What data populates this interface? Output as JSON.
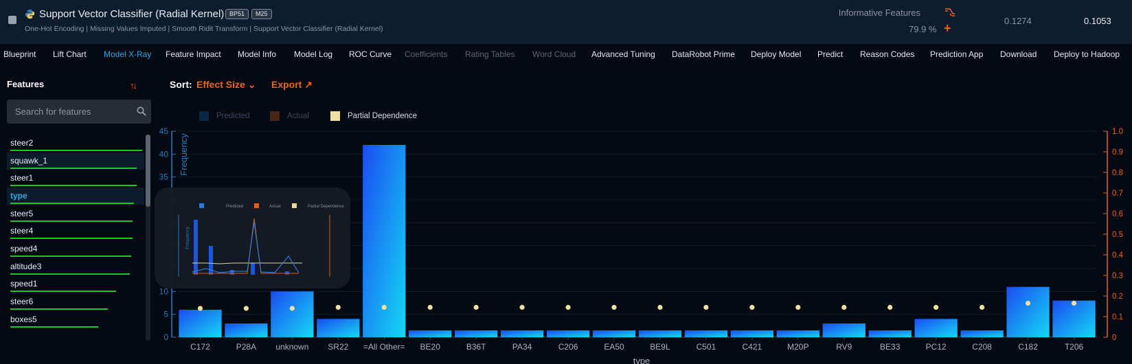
{
  "header": {
    "title": "Support Vector Classifier (Radial Kernel)",
    "badges": [
      "BP51",
      "M25"
    ],
    "subtitle": "One-Hot Encoding | Missing Values Imputed | Smooth Ridit Transform | Support Vector Classifier (Radial Kernel)",
    "feature_list_label": "Informative Features",
    "sample_pct": "79.9 %",
    "metric_validation": "0.1274",
    "metric_cv": "0.1053"
  },
  "tabs": [
    {
      "label": "Blueprint",
      "state": "normal"
    },
    {
      "label": "Lift Chart",
      "state": "normal"
    },
    {
      "label": "Model X-Ray",
      "state": "active"
    },
    {
      "label": "Feature Impact",
      "state": "normal"
    },
    {
      "label": "Model Info",
      "state": "normal"
    },
    {
      "label": "Model Log",
      "state": "normal"
    },
    {
      "label": "ROC Curve",
      "state": "normal"
    },
    {
      "label": "Coefficients",
      "state": "disabled"
    },
    {
      "label": "Rating Tables",
      "state": "disabled"
    },
    {
      "label": "Word Cloud",
      "state": "disabled"
    },
    {
      "label": "Advanced Tuning",
      "state": "normal"
    },
    {
      "label": "DataRobot Prime",
      "state": "normal"
    },
    {
      "label": "Deploy Model",
      "state": "normal"
    },
    {
      "label": "Predict",
      "state": "normal"
    },
    {
      "label": "Reason Codes",
      "state": "normal"
    },
    {
      "label": "Prediction App",
      "state": "normal"
    },
    {
      "label": "Download",
      "state": "normal"
    },
    {
      "label": "Deploy to Hadoop",
      "state": "normal"
    }
  ],
  "sidebar": {
    "title": "Features",
    "search_placeholder": "Search for features",
    "features": [
      {
        "name": "steer2",
        "impact": 0.96,
        "highlight": false,
        "selected": false
      },
      {
        "name": "squawk_1",
        "impact": 0.92,
        "highlight": true,
        "selected": false
      },
      {
        "name": "steer1",
        "impact": 0.92,
        "highlight": false,
        "selected": false
      },
      {
        "name": "type",
        "impact": 0.9,
        "highlight": true,
        "selected": true
      },
      {
        "name": "steer5",
        "impact": 0.89,
        "highlight": false,
        "selected": false
      },
      {
        "name": "steer4",
        "impact": 0.89,
        "highlight": false,
        "selected": false
      },
      {
        "name": "speed4",
        "impact": 0.88,
        "highlight": false,
        "selected": false
      },
      {
        "name": "altitude3",
        "impact": 0.87,
        "highlight": false,
        "selected": false
      },
      {
        "name": "speed1",
        "impact": 0.77,
        "highlight": false,
        "selected": false
      },
      {
        "name": "steer6",
        "impact": 0.71,
        "highlight": false,
        "selected": false
      },
      {
        "name": "boxes5",
        "impact": 0.64,
        "highlight": false,
        "selected": false
      }
    ]
  },
  "toolbar": {
    "sort_label": "Sort:",
    "sort_value": "Effect Size",
    "export_label": "Export"
  },
  "legend": [
    {
      "label": "Predicted",
      "color": "#0b2640",
      "text_color": "#3b4a5c"
    },
    {
      "label": "Actual",
      "color": "#4a2414",
      "text_color": "#3b4a5c"
    },
    {
      "label": "Partial Dependence",
      "color": "#efe0a0",
      "text_color": "#d8dee6"
    }
  ],
  "chart_data": {
    "type": "bar",
    "xlabel": "type",
    "ylabel": "Frequency",
    "ylim": [
      0,
      45
    ],
    "y_ticks": [
      0,
      5,
      10,
      15,
      20,
      25,
      30,
      35,
      40,
      45
    ],
    "y_tick_labels_shown": [
      "0",
      "5",
      "10",
      "35",
      "40",
      "45"
    ],
    "y2lim": [
      0,
      1.0
    ],
    "y2_ticks": [
      "0",
      "0.1",
      "0.2",
      "0.3",
      "0.4",
      "0.5",
      "0.6",
      "0.7",
      "0.8",
      "0.9",
      "1.0"
    ],
    "categories": [
      "C172",
      "P28A",
      "unknown",
      "SR22",
      "=All Other=",
      "BE20",
      "B36T",
      "PA34",
      "C206",
      "EA50",
      "BE9L",
      "C501",
      "C421",
      "M20P",
      "RV9",
      "BE33",
      "PC12",
      "C208",
      "C182",
      "T206"
    ],
    "series": [
      {
        "name": "Frequency",
        "values": [
          6,
          3,
          10,
          4,
          42,
          1.5,
          1.5,
          1.5,
          1.5,
          1.5,
          1.5,
          1.5,
          1.5,
          1.5,
          3,
          1.5,
          4,
          1.5,
          11,
          8
        ]
      },
      {
        "name": "Partial Dependence",
        "values": [
          0.14,
          0.14,
          0.14,
          0.145,
          0.145,
          0.145,
          0.145,
          0.145,
          0.145,
          0.145,
          0.145,
          0.145,
          0.145,
          0.145,
          0.145,
          0.145,
          0.145,
          0.145,
          0.165,
          0.165
        ]
      }
    ]
  },
  "thumbnail": {
    "legend": [
      "Predicted",
      "Actual",
      "Partial Dependence"
    ],
    "ylabel": "Frequency"
  },
  "colors": {
    "accent_orange": "#f26419",
    "accent_blue": "#2aa7e0",
    "impact_green": "#18c825",
    "pd_dot": "#efe0a0"
  }
}
